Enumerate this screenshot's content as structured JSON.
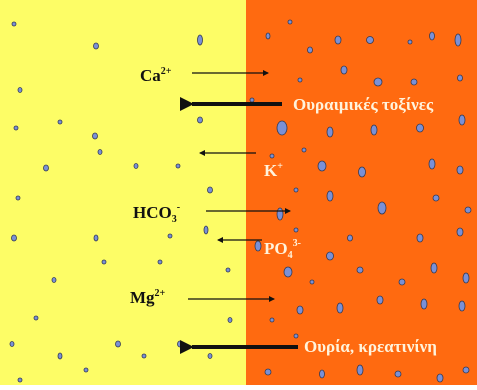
{
  "colors": {
    "left_compartment": "#fdfd66",
    "right_compartment": "#ff6a10",
    "particle_fill": "#7a90d6",
    "particle_stroke": "#333a55",
    "arrow": "#111111",
    "right_label_text": "#fff3dc",
    "left_label_text": "#111111"
  },
  "labels": {
    "ca": {
      "base": "Ca",
      "sup": "2+"
    },
    "uremic_toxins": "Ουραιμικές τοξίνες",
    "k": {
      "base": "K",
      "sup": "+"
    },
    "hco3": {
      "base": "HCO",
      "sub": "3",
      "sup": "-"
    },
    "po4": {
      "base": "PO",
      "sub": "4",
      "sup": "3-"
    },
    "mg": {
      "base": "Mg",
      "sup": "2+"
    },
    "urea_creatinine": "Ουρία, κρεατινίνη"
  },
  "flows": [
    {
      "name": "calcium",
      "direction": "left-to-right",
      "weight": "thin"
    },
    {
      "name": "uremic-toxins",
      "direction": "right-to-left",
      "weight": "thick"
    },
    {
      "name": "potassium",
      "direction": "right-to-left",
      "weight": "thin"
    },
    {
      "name": "bicarbonate",
      "direction": "left-to-right",
      "weight": "thin"
    },
    {
      "name": "phosphate",
      "direction": "right-to-left",
      "weight": "thin"
    },
    {
      "name": "magnesium",
      "direction": "left-to-right",
      "weight": "thin"
    },
    {
      "name": "urea-creatinine",
      "direction": "right-to-left",
      "weight": "thick"
    }
  ]
}
